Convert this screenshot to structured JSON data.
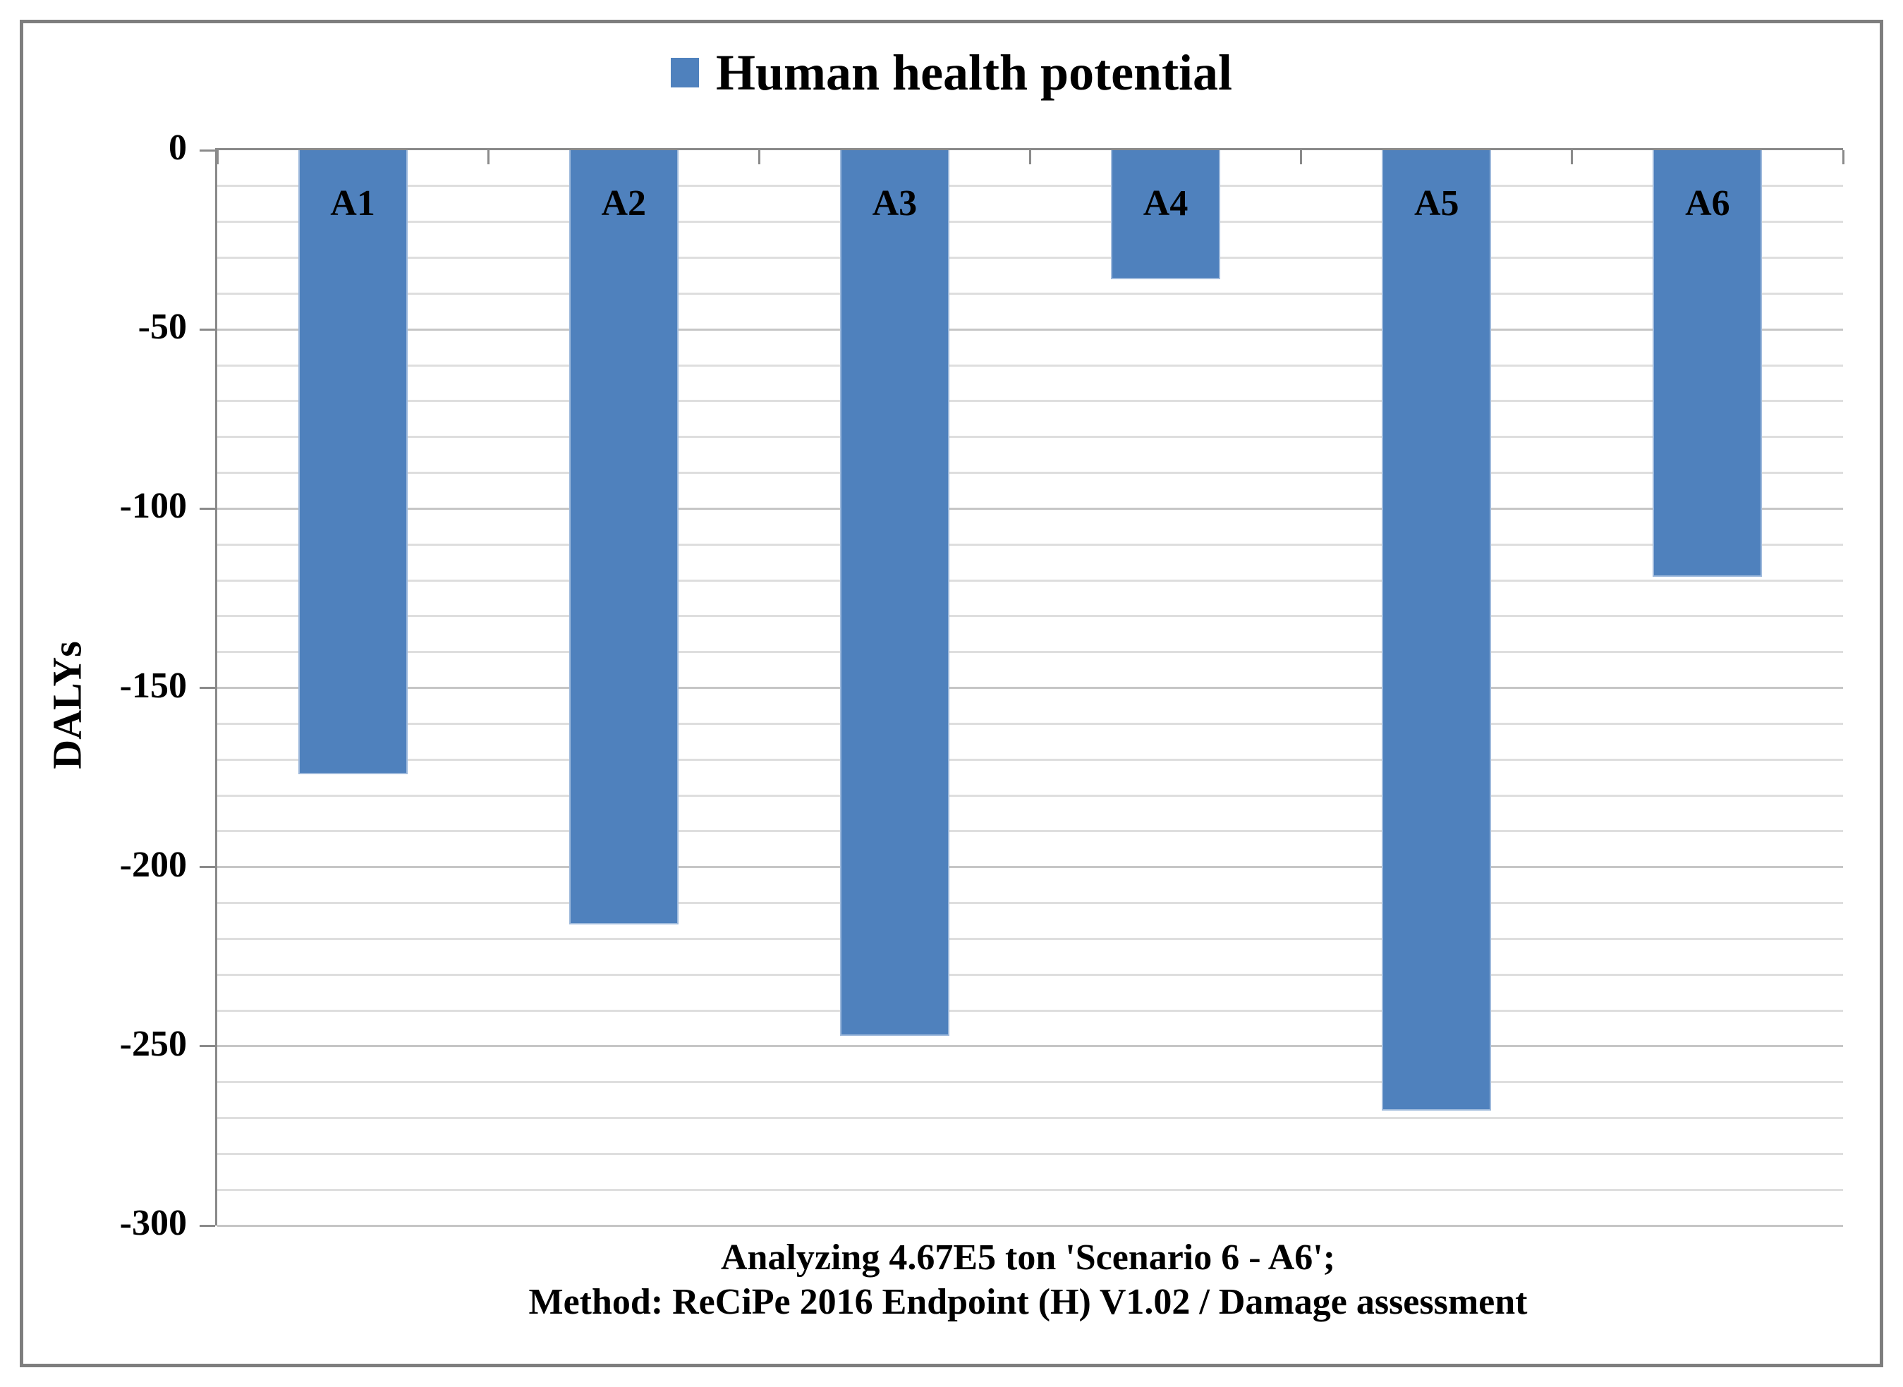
{
  "legend": {
    "label": "Human health potential",
    "marker_color": "#4f81bd"
  },
  "y_axis": {
    "title": "DALYs",
    "tick_labels": [
      "0",
      "-50",
      "-100",
      "-150",
      "-200",
      "-250",
      "-300"
    ]
  },
  "footer": {
    "line1": "Analyzing 4.67E5 ton 'Scenario 6 - A6';",
    "line2": "Method: ReCiPe 2016 Endpoint (H) V1.02 / Damage assessment"
  },
  "colors": {
    "bar_fill": "#4f81bd",
    "bar_border": "#9fbadc",
    "axis": "#8a8a8a",
    "grid_minor": "#dedede",
    "grid_major": "#c6c6c6",
    "frame_border": "#7e7e7e"
  },
  "chart_data": {
    "type": "bar",
    "title": "",
    "categories": [
      "A1",
      "A2",
      "A3",
      "A4",
      "A5",
      "A6"
    ],
    "series": [
      {
        "name": "Human health potential",
        "values": [
          -174,
          -216,
          -247,
          -36,
          -268,
          -119
        ]
      }
    ],
    "xlabel": "Analyzing 4.67E5 ton 'Scenario 6 - A6'; Method: ReCiPe 2016 Endpoint (H) V1.02 / Damage assessment",
    "ylabel": "DALYs",
    "ylim": [
      -300,
      0
    ],
    "y_major_step": 50,
    "y_minor_step": 10,
    "grid": true,
    "legend_position": "top-center",
    "bar_color": "#4f81bd",
    "category_labels_inside_bars": true
  }
}
